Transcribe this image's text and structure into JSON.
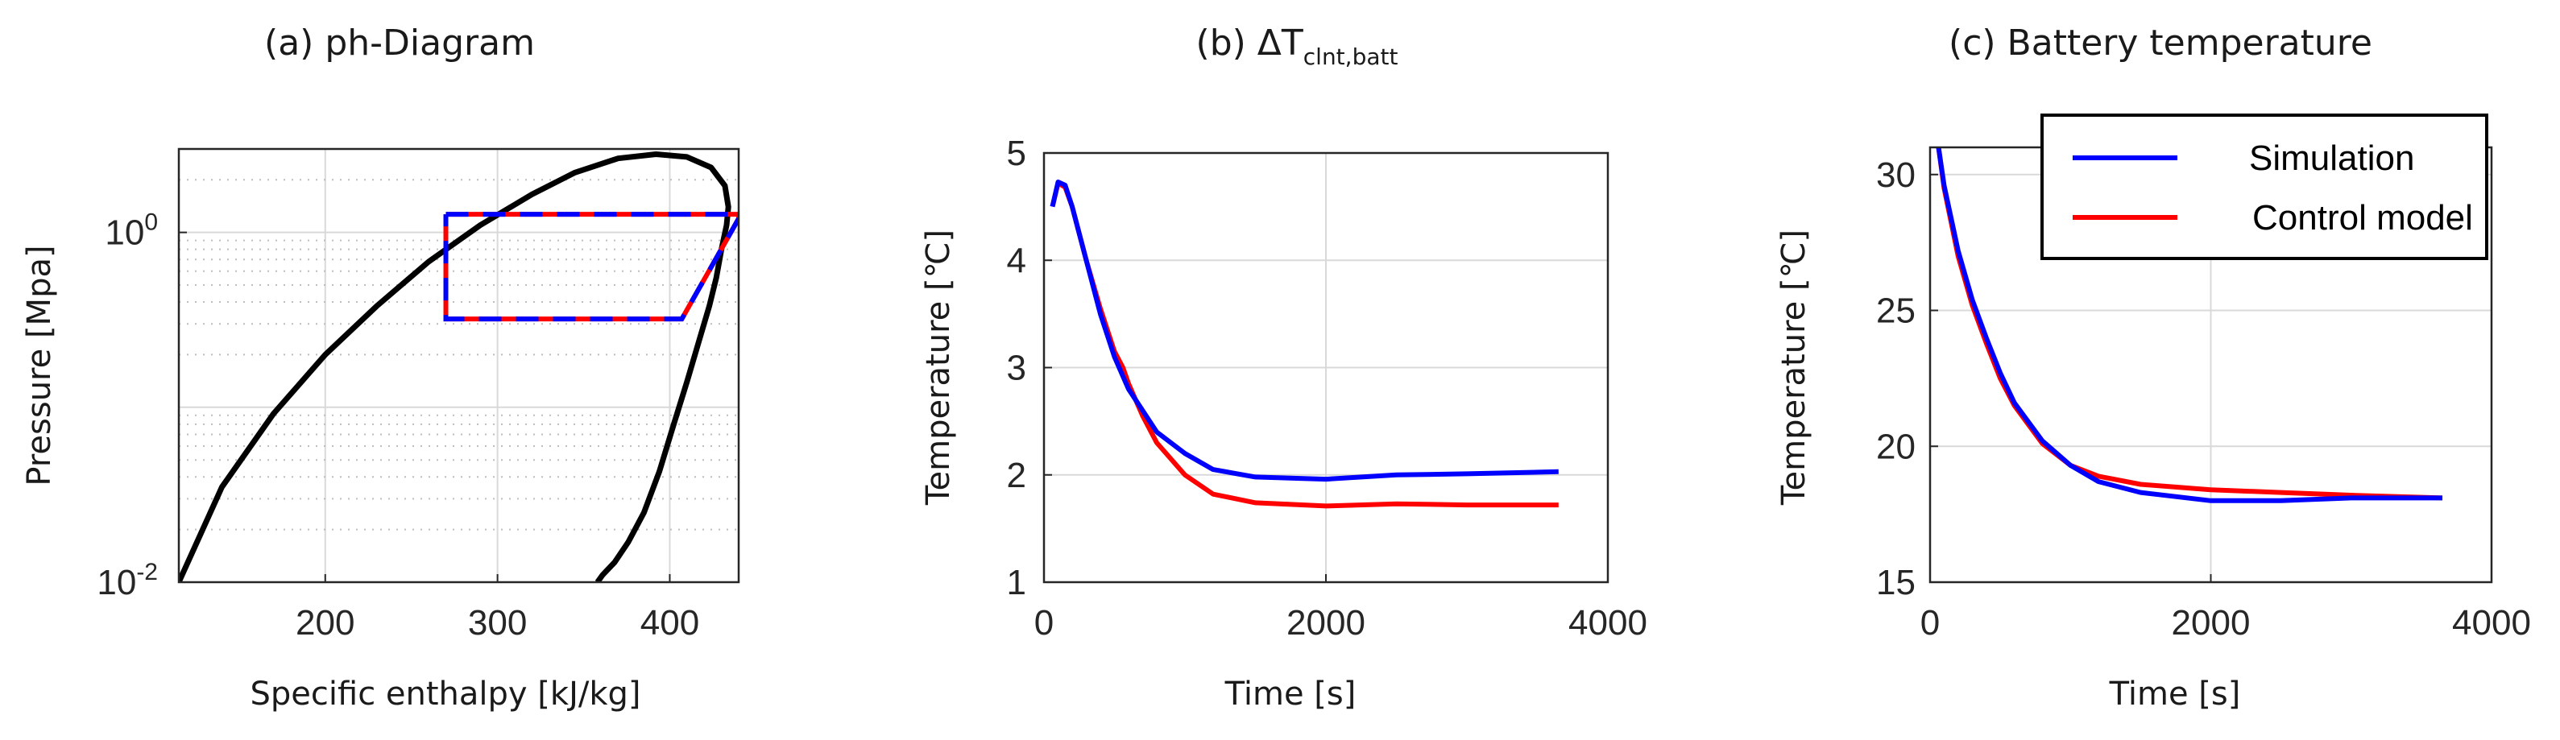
{
  "colors": {
    "saturation": "#000000",
    "simulation": "#0000ff",
    "control": "#ff0000",
    "grid": "#d9d9d9",
    "axis": "#262626"
  },
  "chart_data": [
    {
      "type": "line",
      "title": "(a) ph-Diagram",
      "xlabel": "Specific enthalpy [kJ/kg]",
      "ylabel": "Pressure [Mpa]",
      "xlim": [
        115,
        440
      ],
      "ylim": [
        0.01,
        3
      ],
      "yscale": "log",
      "grid": true,
      "xticks": [
        "200",
        "300",
        "400"
      ],
      "yticks": [
        {
          "base": "10",
          "exp": "-2"
        },
        {
          "base": "10",
          "exp": "0"
        }
      ],
      "series": [
        {
          "role": "saturation-dome",
          "x": [
            115,
            140,
            170,
            200,
            230,
            260,
            290,
            320,
            345,
            370,
            392,
            410,
            424,
            432,
            434,
            433,
            430,
            427,
            423,
            417,
            410,
            402,
            394,
            385,
            376,
            368,
            361,
            358
          ],
          "y": [
            0.01,
            0.035,
            0.092,
            0.2,
            0.38,
            0.68,
            1.1,
            1.65,
            2.2,
            2.65,
            2.8,
            2.7,
            2.35,
            1.85,
            1.4,
            1.1,
            0.8,
            0.55,
            0.38,
            0.24,
            0.14,
            0.078,
            0.043,
            0.025,
            0.017,
            0.013,
            0.011,
            0.01
          ]
        },
        {
          "role": "refrigerant-cycle",
          "dashed": true,
          "x": [
            270,
            440,
            440,
            407,
            270,
            270
          ],
          "y": [
            1.27,
            1.27,
            1.2,
            0.32,
            0.32,
            1.27
          ]
        }
      ]
    },
    {
      "type": "line",
      "title": {
        "main": "(b) ΔT",
        "sub": "clnt,batt"
      },
      "xlabel": "Time [s]",
      "ylabel": "Temperature [℃]",
      "xlim": [
        0,
        4000
      ],
      "ylim": [
        1,
        5
      ],
      "grid": true,
      "xticks": [
        "0",
        "2000",
        "4000"
      ],
      "yticks": [
        "1",
        "2",
        "3",
        "4",
        "5"
      ],
      "series": [
        {
          "name": "Simulation",
          "x": [
            60,
            100,
            150,
            200,
            300,
            400,
            500,
            600,
            800,
            1000,
            1200,
            1500,
            2000,
            2500,
            3000,
            3650
          ],
          "y": [
            4.5,
            4.73,
            4.7,
            4.5,
            4.0,
            3.5,
            3.1,
            2.8,
            2.4,
            2.2,
            2.05,
            1.98,
            1.96,
            2.0,
            2.01,
            2.03
          ]
        },
        {
          "name": "Control model",
          "x": [
            60,
            100,
            150,
            200,
            300,
            400,
            500,
            560,
            600,
            700,
            800,
            1000,
            1200,
            1500,
            2000,
            2500,
            3000,
            3650
          ],
          "y": [
            4.5,
            4.72,
            4.68,
            4.5,
            4.0,
            3.55,
            3.15,
            3.0,
            2.85,
            2.55,
            2.3,
            2.0,
            1.82,
            1.74,
            1.71,
            1.73,
            1.72,
            1.72
          ]
        }
      ]
    },
    {
      "type": "line",
      "title": "(c) Battery temperature",
      "xlabel": "Time [s]",
      "ylabel": "Temperature [℃]",
      "xlim": [
        0,
        4000
      ],
      "ylim": [
        15,
        31
      ],
      "grid": true,
      "xticks": [
        "0",
        "2000",
        "4000"
      ],
      "yticks": [
        "15",
        "20",
        "25",
        "30"
      ],
      "legend": {
        "position": "top-right",
        "entries": [
          "Simulation",
          "Control model"
        ]
      },
      "series": [
        {
          "name": "Simulation",
          "x": [
            60,
            100,
            200,
            300,
            400,
            500,
            600,
            800,
            1000,
            1200,
            1500,
            2000,
            2500,
            3000,
            3650
          ],
          "y": [
            31,
            29.6,
            27.2,
            25.4,
            24.0,
            22.7,
            21.6,
            20.2,
            19.3,
            18.7,
            18.3,
            18.0,
            18.0,
            18.1,
            18.1
          ]
        },
        {
          "name": "Control model",
          "x": [
            60,
            100,
            200,
            300,
            400,
            500,
            600,
            800,
            1000,
            1200,
            1500,
            2000,
            2500,
            3000,
            3650
          ],
          "y": [
            31,
            29.5,
            27.0,
            25.2,
            23.8,
            22.5,
            21.5,
            20.1,
            19.3,
            18.9,
            18.6,
            18.4,
            18.3,
            18.2,
            18.1
          ]
        }
      ]
    }
  ]
}
